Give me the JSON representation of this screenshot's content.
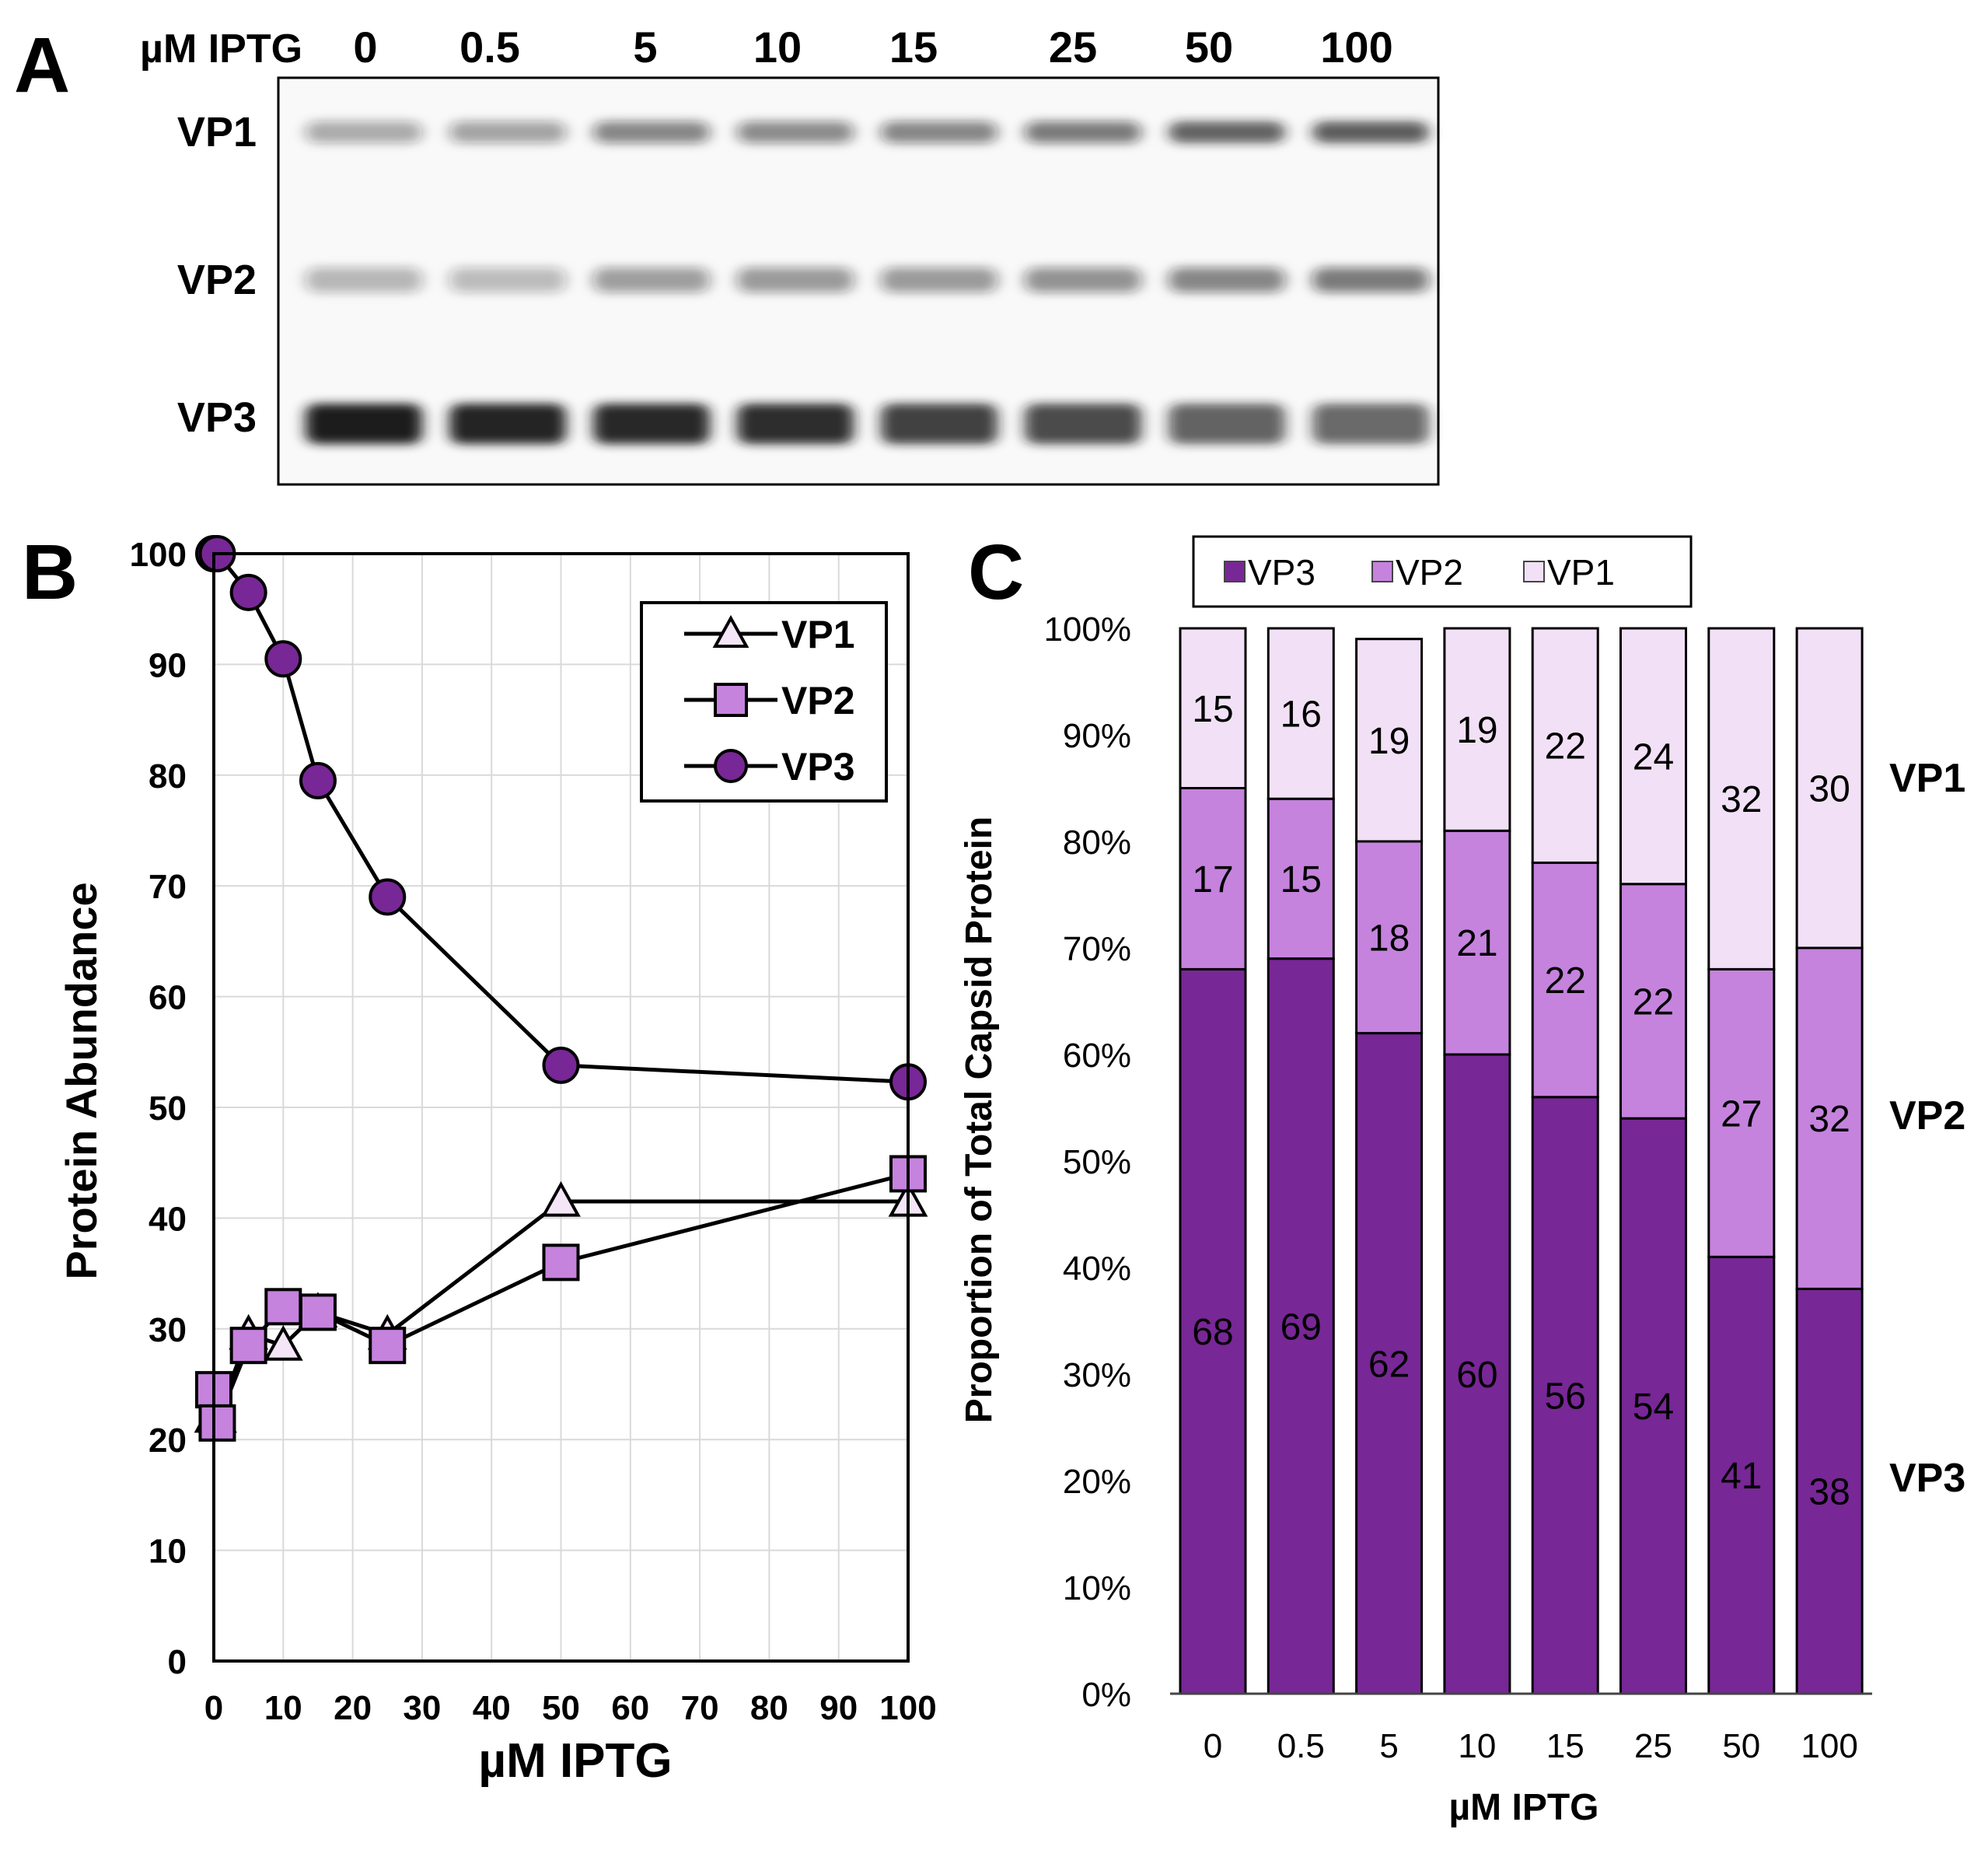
{
  "panel_labels": {
    "a": "A",
    "b": "B",
    "c": "C"
  },
  "colors": {
    "vp3": "#782796",
    "vp2": "#c583dd",
    "vp1": "#f2e1f6",
    "vp1_marker": "#f5e6f7",
    "gel_bg": "#f9f9f9",
    "band": "#1a1a1a"
  },
  "chart_data": [
    {
      "type": "gel",
      "conc_label": "µM IPTG",
      "lanes": [
        "0",
        "0.5",
        "5",
        "10",
        "15",
        "25",
        "50",
        "100"
      ],
      "band_labels": [
        "VP1",
        "VP2",
        "VP3"
      ],
      "band_intensity": {
        "VP1": [
          0.35,
          0.38,
          0.5,
          0.48,
          0.5,
          0.55,
          0.68,
          0.7
        ],
        "VP2": [
          0.3,
          0.28,
          0.4,
          0.42,
          0.42,
          0.45,
          0.5,
          0.55
        ],
        "VP3": [
          1.0,
          0.97,
          0.95,
          0.9,
          0.82,
          0.78,
          0.68,
          0.65
        ]
      }
    },
    {
      "type": "line",
      "xlabel": "µM IPTG",
      "ylabel": "Protein Abundance",
      "xlim": [
        0,
        100
      ],
      "ylim": [
        0,
        100
      ],
      "x_ticks": [
        "0",
        "10",
        "20",
        "30",
        "40",
        "50",
        "60",
        "70",
        "80",
        "90",
        "100"
      ],
      "y_ticks": [
        "0",
        "10",
        "20",
        "30",
        "40",
        "50",
        "60",
        "70",
        "80",
        "90",
        "100"
      ],
      "legend_position": "top-right",
      "grid": true,
      "series": [
        {
          "name": "VP1",
          "marker": "triangle",
          "x": [
            0,
            0.5,
            5,
            10,
            15,
            25,
            50,
            100
          ],
          "y": [
            22,
            22,
            29.5,
            28.5,
            31.5,
            29.5,
            41.5,
            41.5
          ]
        },
        {
          "name": "VP2",
          "marker": "square",
          "x": [
            0,
            0.5,
            5,
            10,
            15,
            25,
            50,
            100
          ],
          "y": [
            24.5,
            21.5,
            28.5,
            32,
            31.5,
            28.5,
            36,
            44
          ]
        },
        {
          "name": "VP3",
          "marker": "circle",
          "x": [
            0,
            0.5,
            5,
            10,
            15,
            25,
            50,
            100
          ],
          "y": [
            100,
            100,
            96.5,
            90.5,
            79.5,
            69,
            53.8,
            52.3
          ]
        }
      ]
    },
    {
      "type": "bar",
      "stacked": true,
      "xlabel": "µM IPTG",
      "ylabel": "Proportion of Total Capsid Protein",
      "ylim": [
        0,
        100
      ],
      "y_ticks": [
        "0%",
        "10%",
        "20%",
        "30%",
        "40%",
        "50%",
        "60%",
        "70%",
        "80%",
        "90%",
        "100%"
      ],
      "categories": [
        "0",
        "0.5",
        "5",
        "10",
        "15",
        "25",
        "50",
        "100"
      ],
      "legend_position": "top",
      "series": [
        {
          "name": "VP3",
          "values": [
            68,
            69,
            62,
            60,
            56,
            54,
            41,
            38
          ]
        },
        {
          "name": "VP2",
          "values": [
            17,
            15,
            18,
            21,
            22,
            22,
            27,
            32
          ]
        },
        {
          "name": "VP1",
          "values": [
            15,
            16,
            19,
            19,
            22,
            24,
            32,
            30
          ]
        }
      ],
      "right_labels": [
        "VP1",
        "VP2",
        "VP3"
      ]
    }
  ]
}
